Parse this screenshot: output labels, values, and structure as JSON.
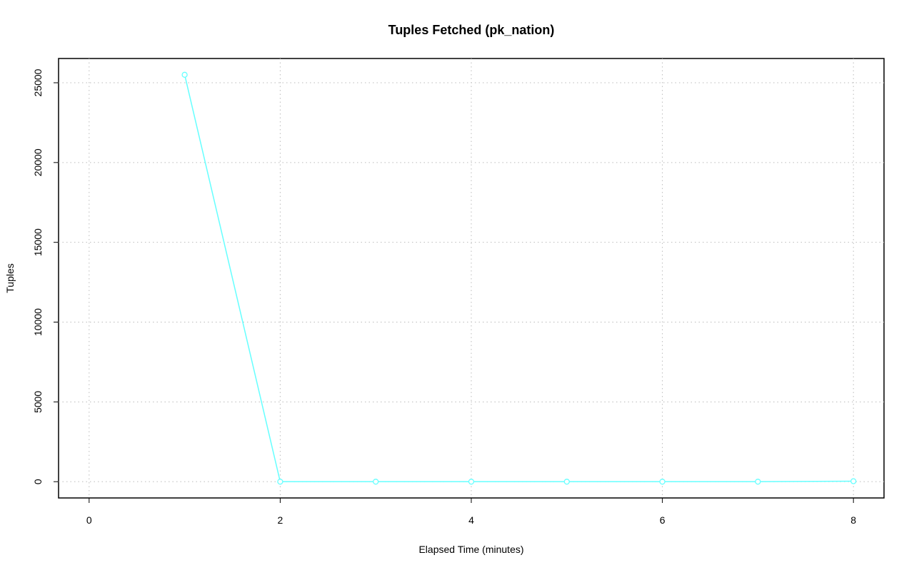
{
  "chart_data": {
    "type": "line",
    "title": "Tuples Fetched (pk_nation)",
    "x_label": "Elapsed Time (minutes)",
    "y_label": "Tuples",
    "x": [
      1,
      2,
      3,
      4,
      5,
      6,
      7,
      8
    ],
    "series": [
      {
        "name": "pk_nation",
        "color": "#66ffff",
        "values": [
          25500,
          0,
          0,
          0,
          0,
          0,
          0,
          30
        ]
      }
    ],
    "xlim": [
      -0.32,
      8.32
    ],
    "xticks": [
      0,
      2,
      4,
      6,
      8
    ],
    "ylim": [
      -1020,
      26520
    ],
    "yticks": [
      0,
      5000,
      10000,
      15000,
      20000,
      25000
    ],
    "grid": true,
    "legend": false
  }
}
